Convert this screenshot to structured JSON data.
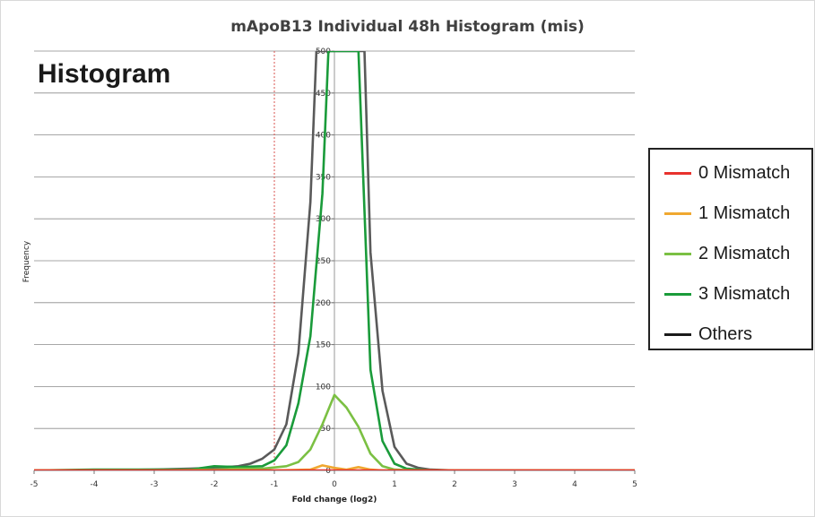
{
  "chart_data": {
    "type": "line",
    "title": "mApoB13 Individual 48h Histogram (mis)",
    "overlay_label": "Histogram",
    "xlabel": "Fold change (log2)",
    "ylabel": "Frequency",
    "xlim": [
      -5,
      5
    ],
    "ylim": [
      0,
      500
    ],
    "x_ticks": [
      "-5",
      "-4",
      "-3",
      "-2",
      "-1",
      "0",
      "1",
      "2",
      "3",
      "4",
      "5"
    ],
    "y_ticks": [
      "0",
      "50",
      "100",
      "150",
      "200",
      "250",
      "300",
      "350",
      "400",
      "450",
      "500"
    ],
    "grid": true,
    "threshold_line_x": -1,
    "legend_position": "right",
    "series": [
      {
        "name": "0 Mismatch",
        "color": "#e8322d",
        "points": [
          [
            -5,
            0
          ],
          [
            -4,
            0
          ],
          [
            -3,
            0
          ],
          [
            -2,
            0
          ],
          [
            -1,
            0
          ],
          [
            0,
            0
          ],
          [
            1,
            0
          ],
          [
            2,
            0
          ],
          [
            3,
            0
          ],
          [
            4,
            0
          ],
          [
            5,
            0
          ]
        ]
      },
      {
        "name": "1 Mismatch",
        "color": "#f0a830",
        "points": [
          [
            -5,
            0
          ],
          [
            -1,
            0
          ],
          [
            -0.4,
            1
          ],
          [
            -0.2,
            6
          ],
          [
            0,
            3
          ],
          [
            0.2,
            1
          ],
          [
            0.4,
            4
          ],
          [
            0.6,
            1
          ],
          [
            0.8,
            0
          ],
          [
            5,
            0
          ]
        ]
      },
      {
        "name": "2 Mismatch",
        "color": "#7bc043",
        "points": [
          [
            -5,
            0
          ],
          [
            -4,
            0
          ],
          [
            -3,
            0
          ],
          [
            -2,
            1
          ],
          [
            -1.6,
            2
          ],
          [
            -1.2,
            2
          ],
          [
            -0.8,
            5
          ],
          [
            -0.6,
            10
          ],
          [
            -0.4,
            25
          ],
          [
            -0.2,
            55
          ],
          [
            0,
            90
          ],
          [
            0.2,
            75
          ],
          [
            0.4,
            52
          ],
          [
            0.6,
            20
          ],
          [
            0.8,
            5
          ],
          [
            1,
            1
          ],
          [
            1.4,
            0
          ],
          [
            5,
            0
          ]
        ]
      },
      {
        "name": "3 Mismatch",
        "color": "#1a9b3a",
        "points": [
          [
            -5,
            0
          ],
          [
            -4,
            1
          ],
          [
            -3,
            1
          ],
          [
            -2.4,
            1
          ],
          [
            -2,
            5
          ],
          [
            -1.6,
            4
          ],
          [
            -1.2,
            5
          ],
          [
            -1,
            12
          ],
          [
            -0.8,
            30
          ],
          [
            -0.6,
            80
          ],
          [
            -0.4,
            160
          ],
          [
            -0.2,
            330
          ],
          [
            -0.1,
            500
          ],
          [
            0.4,
            500
          ],
          [
            0.6,
            120
          ],
          [
            0.8,
            35
          ],
          [
            1,
            8
          ],
          [
            1.2,
            2
          ],
          [
            1.6,
            0
          ],
          [
            5,
            0
          ]
        ]
      },
      {
        "name": "Others",
        "color": "#5a5a5a",
        "points": [
          [
            -5,
            0
          ],
          [
            -4,
            0
          ],
          [
            -3,
            1
          ],
          [
            -2.4,
            2
          ],
          [
            -2,
            3
          ],
          [
            -1.6,
            5
          ],
          [
            -1.4,
            8
          ],
          [
            -1.2,
            14
          ],
          [
            -1,
            25
          ],
          [
            -0.8,
            55
          ],
          [
            -0.6,
            140
          ],
          [
            -0.4,
            320
          ],
          [
            -0.3,
            500
          ],
          [
            0.5,
            500
          ],
          [
            0.6,
            260
          ],
          [
            0.8,
            95
          ],
          [
            1,
            28
          ],
          [
            1.2,
            8
          ],
          [
            1.4,
            3
          ],
          [
            1.6,
            1
          ],
          [
            2,
            0
          ],
          [
            5,
            0
          ]
        ]
      }
    ]
  }
}
